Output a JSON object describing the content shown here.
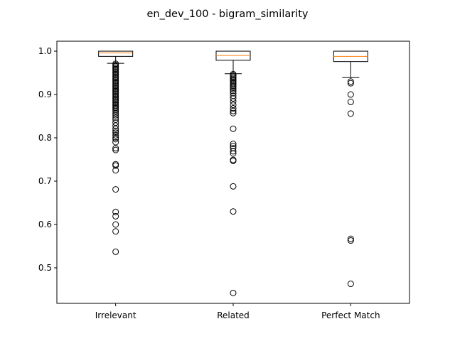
{
  "chart_data": {
    "type": "box",
    "title": "en_dev_100 - bigram_similarity",
    "xlabel": "",
    "ylabel": "",
    "ylim": [
      0.418,
      1.023
    ],
    "yticks": [
      0.5,
      0.6,
      0.7,
      0.8,
      0.9,
      1.0
    ],
    "ytick_labels": [
      "0.5",
      "0.6",
      "0.7",
      "0.8",
      "0.9",
      "1.0"
    ],
    "categories": [
      "Irrelevant",
      "Related",
      "Perfect Match"
    ],
    "boxes": [
      {
        "name": "Irrelevant",
        "whisker_low": 0.972,
        "q1": 0.988,
        "median": 0.996,
        "q3": 1.0,
        "whisker_high": 1.0,
        "outliers": [
          0.971,
          0.968,
          0.965,
          0.962,
          0.959,
          0.956,
          0.953,
          0.95,
          0.947,
          0.944,
          0.941,
          0.938,
          0.935,
          0.932,
          0.929,
          0.926,
          0.923,
          0.92,
          0.917,
          0.914,
          0.911,
          0.908,
          0.905,
          0.902,
          0.899,
          0.896,
          0.893,
          0.89,
          0.887,
          0.884,
          0.881,
          0.878,
          0.875,
          0.872,
          0.869,
          0.866,
          0.862,
          0.857,
          0.852,
          0.847,
          0.842,
          0.835,
          0.828,
          0.821,
          0.816,
          0.812,
          0.806,
          0.801,
          0.797,
          0.79,
          0.776,
          0.772,
          0.739,
          0.736,
          0.725,
          0.681,
          0.629,
          0.619,
          0.6,
          0.584,
          0.537
        ]
      },
      {
        "name": "Related",
        "whisker_low": 0.948,
        "q1": 0.979,
        "median": 0.99,
        "q3": 1.0,
        "whisker_high": 1.0,
        "outliers": [
          0.947,
          0.944,
          0.941,
          0.938,
          0.935,
          0.932,
          0.929,
          0.926,
          0.923,
          0.92,
          0.917,
          0.913,
          0.908,
          0.903,
          0.897,
          0.891,
          0.884,
          0.876,
          0.868,
          0.862,
          0.857,
          0.821,
          0.786,
          0.781,
          0.776,
          0.769,
          0.764,
          0.749,
          0.747,
          0.688,
          0.63,
          0.442
        ]
      },
      {
        "name": "Perfect Match",
        "whisker_low": 0.939,
        "q1": 0.976,
        "median": 0.988,
        "q3": 1.0,
        "whisker_high": 1.0,
        "outliers": [
          0.93,
          0.926,
          0.9,
          0.883,
          0.856,
          0.567,
          0.563,
          0.463
        ]
      }
    ],
    "colors": {
      "box": "#000000",
      "median": "#ff7f0e",
      "outlier": "#000000"
    },
    "grid": false
  }
}
